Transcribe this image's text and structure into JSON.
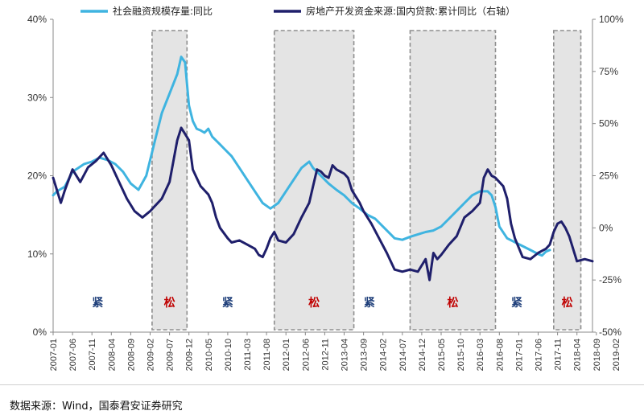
{
  "chart_data": {
    "type": "line",
    "legend_placement": "top",
    "x_ticks": [
      "2007-01",
      "2007-06",
      "2007-11",
      "2008-04",
      "2008-09",
      "2009-02",
      "2009-07",
      "2009-12",
      "2010-05",
      "2010-10",
      "2011-03",
      "2011-08",
      "2012-01",
      "2012-06",
      "2012-11",
      "2013-04",
      "2013-09",
      "2014-02",
      "2014-07",
      "2014-12",
      "2015-05",
      "2015-10",
      "2016-03",
      "2016-08",
      "2017-01",
      "2017-06",
      "2017-11",
      "2018-04",
      "2018-09",
      "2019-02"
    ],
    "left_axis": {
      "ticks": [
        "0%",
        "10%",
        "20%",
        "30%",
        "40%"
      ],
      "range": [
        0,
        40
      ]
    },
    "right_axis": {
      "ticks": [
        "-50%",
        "-25%",
        "0%",
        "25%",
        "50%",
        "75%",
        "100%"
      ],
      "range": [
        -50,
        100
      ]
    },
    "series": [
      {
        "name": "社会融资规模存量:同比",
        "axis": "left",
        "color": "#3fb4e0",
        "points": [
          [
            0,
            17.5
          ],
          [
            1,
            18.0
          ],
          [
            3,
            18.6
          ],
          [
            5,
            20.5
          ],
          [
            8,
            21.5
          ],
          [
            10,
            21.8
          ],
          [
            12,
            22.3
          ],
          [
            14,
            22.0
          ],
          [
            16,
            21.5
          ],
          [
            18,
            20.5
          ],
          [
            20,
            19.0
          ],
          [
            22,
            18.2
          ],
          [
            24,
            20.0
          ],
          [
            26,
            24.0
          ],
          [
            28,
            28.0
          ],
          [
            30,
            30.5
          ],
          [
            32,
            33.0
          ],
          [
            33,
            35.2
          ],
          [
            34,
            34.5
          ],
          [
            35,
            29.0
          ],
          [
            36,
            27.0
          ],
          [
            37,
            26.0
          ],
          [
            38,
            25.8
          ],
          [
            39,
            25.5
          ],
          [
            40,
            26.0
          ],
          [
            41,
            25.0
          ],
          [
            42,
            24.5
          ],
          [
            43,
            24.0
          ],
          [
            44,
            23.5
          ],
          [
            46,
            22.5
          ],
          [
            48,
            21.0
          ],
          [
            50,
            19.5
          ],
          [
            52,
            18.0
          ],
          [
            54,
            16.5
          ],
          [
            56,
            15.8
          ],
          [
            58,
            16.5
          ],
          [
            60,
            18.0
          ],
          [
            62,
            19.5
          ],
          [
            64,
            21.0
          ],
          [
            66,
            21.8
          ],
          [
            67,
            21.0
          ],
          [
            69,
            20.0
          ],
          [
            71,
            19.0
          ],
          [
            73,
            18.2
          ],
          [
            75,
            17.5
          ],
          [
            77,
            16.5
          ],
          [
            79,
            15.8
          ],
          [
            81,
            15.0
          ],
          [
            83,
            14.5
          ],
          [
            85,
            13.5
          ],
          [
            87,
            12.5
          ],
          [
            88,
            12.0
          ],
          [
            90,
            11.8
          ],
          [
            92,
            12.2
          ],
          [
            94,
            12.5
          ],
          [
            96,
            12.8
          ],
          [
            98,
            13.0
          ],
          [
            100,
            13.5
          ],
          [
            102,
            14.5
          ],
          [
            104,
            15.5
          ],
          [
            106,
            16.5
          ],
          [
            108,
            17.5
          ],
          [
            110,
            18.0
          ],
          [
            112,
            18.0
          ],
          [
            113,
            17.5
          ],
          [
            114,
            16.0
          ],
          [
            115,
            13.5
          ],
          [
            117,
            12.0
          ],
          [
            119,
            11.5
          ],
          [
            121,
            11.0
          ],
          [
            123,
            10.5
          ],
          [
            125,
            10.0
          ],
          [
            126,
            9.8
          ],
          [
            127,
            10.3
          ],
          [
            128,
            10.5
          ]
        ]
      },
      {
        "name": "房地产开发资金来源:国内贷款:累计同比（右轴）",
        "axis": "right",
        "color": "#1f1f6b",
        "points": [
          [
            0,
            24
          ],
          [
            1,
            18
          ],
          [
            2,
            12
          ],
          [
            3,
            18
          ],
          [
            5,
            28
          ],
          [
            7,
            22
          ],
          [
            9,
            29
          ],
          [
            11,
            32
          ],
          [
            13,
            36
          ],
          [
            15,
            30
          ],
          [
            17,
            22
          ],
          [
            19,
            14
          ],
          [
            21,
            8
          ],
          [
            23,
            5
          ],
          [
            25,
            8
          ],
          [
            26,
            10
          ],
          [
            28,
            14
          ],
          [
            30,
            22
          ],
          [
            32,
            42
          ],
          [
            33,
            48
          ],
          [
            34,
            45
          ],
          [
            35,
            42
          ],
          [
            36,
            28
          ],
          [
            37,
            24
          ],
          [
            38,
            20
          ],
          [
            40,
            16
          ],
          [
            41,
            12
          ],
          [
            42,
            5
          ],
          [
            43,
            0
          ],
          [
            45,
            -5
          ],
          [
            46,
            -7
          ],
          [
            48,
            -6
          ],
          [
            50,
            -8
          ],
          [
            52,
            -10
          ],
          [
            53,
            -13
          ],
          [
            54,
            -14
          ],
          [
            55,
            -10
          ],
          [
            56,
            -5
          ],
          [
            57,
            -2
          ],
          [
            58,
            -6
          ],
          [
            60,
            -7
          ],
          [
            62,
            -3
          ],
          [
            64,
            5
          ],
          [
            66,
            12
          ],
          [
            67,
            20
          ],
          [
            68,
            28
          ],
          [
            69,
            27
          ],
          [
            70,
            25
          ],
          [
            71,
            24
          ],
          [
            72,
            30
          ],
          [
            73,
            28
          ],
          [
            74,
            27
          ],
          [
            75,
            26
          ],
          [
            76,
            24
          ],
          [
            77,
            18
          ],
          [
            78,
            15
          ],
          [
            79,
            12
          ],
          [
            80,
            8
          ],
          [
            82,
            2
          ],
          [
            84,
            -5
          ],
          [
            86,
            -12
          ],
          [
            88,
            -20
          ],
          [
            90,
            -21
          ],
          [
            92,
            -20
          ],
          [
            94,
            -21
          ],
          [
            95,
            -18
          ],
          [
            96,
            -15
          ],
          [
            97,
            -25
          ],
          [
            98,
            -12
          ],
          [
            99,
            -15
          ],
          [
            100,
            -13
          ],
          [
            102,
            -8
          ],
          [
            104,
            -4
          ],
          [
            106,
            5
          ],
          [
            108,
            8
          ],
          [
            110,
            12
          ],
          [
            111,
            24
          ],
          [
            112,
            28
          ],
          [
            113,
            25
          ],
          [
            114,
            24
          ],
          [
            115,
            22
          ],
          [
            116,
            20
          ],
          [
            117,
            14
          ],
          [
            118,
            2
          ],
          [
            119,
            -5
          ],
          [
            121,
            -14
          ],
          [
            123,
            -15
          ],
          [
            125,
            -12
          ],
          [
            127,
            -10
          ],
          [
            128,
            -8
          ],
          [
            129,
            -2
          ],
          [
            130,
            2
          ],
          [
            131,
            3
          ],
          [
            132,
            0
          ],
          [
            133,
            -4
          ],
          [
            134,
            -10
          ],
          [
            135,
            -16
          ],
          [
            137,
            -15
          ],
          [
            139,
            -16
          ]
        ]
      }
    ],
    "regions": [
      {
        "label": "紧",
        "color": "#1f3f7a",
        "shaded": false,
        "x_center": 11.5
      },
      {
        "label": "松",
        "color": "#c00000",
        "shaded": true,
        "from": 25.5,
        "to": 34.5
      },
      {
        "label": "紧",
        "color": "#1f3f7a",
        "shaded": false,
        "x_center": 45
      },
      {
        "label": "松",
        "color": "#c00000",
        "shaded": true,
        "from": 57,
        "to": 77.5
      },
      {
        "label": "紧",
        "color": "#1f3f7a",
        "shaded": false,
        "x_center": 81.5
      },
      {
        "label": "松",
        "color": "#c00000",
        "shaded": true,
        "from": 92,
        "to": 114
      },
      {
        "label": "紧",
        "color": "#1f3f7a",
        "shaded": false,
        "x_center": 119.5
      },
      {
        "label": "松",
        "color": "#c00000",
        "shaded": true,
        "from": 129,
        "to": 136
      }
    ]
  },
  "footer": {
    "source": "数据来源：Wind，国泰君安证券研究"
  }
}
